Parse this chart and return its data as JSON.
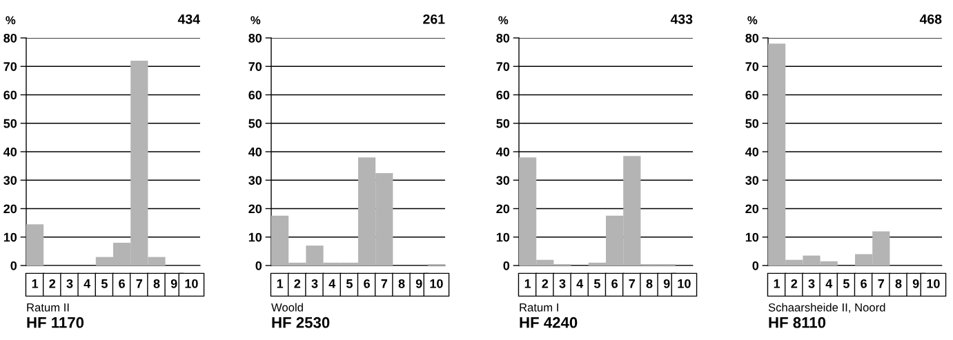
{
  "chart_data": [
    {
      "type": "bar",
      "title": "HF 1170",
      "subtitle": "Ratum II",
      "ylabel": "%",
      "annotations": [
        "434"
      ],
      "categories": [
        "1",
        "2",
        "3",
        "4",
        "5",
        "6",
        "7",
        "8",
        "9",
        "10"
      ],
      "values": [
        14.5,
        0,
        0,
        0,
        3,
        8,
        72,
        3,
        0,
        0
      ],
      "color": "#b4b4b4",
      "ylim": [
        0,
        80
      ],
      "yticks": [
        0,
        10,
        20,
        30,
        40,
        50,
        60,
        70,
        80
      ],
      "grid": "y"
    },
    {
      "type": "bar",
      "title": "HF 2530",
      "subtitle": "Woold",
      "ylabel": "%",
      "annotations": [
        "261"
      ],
      "categories": [
        "1",
        "2",
        "3",
        "4",
        "5",
        "6",
        "7",
        "8",
        "9",
        "10"
      ],
      "values": [
        17.5,
        1,
        7,
        1,
        1,
        38,
        32.5,
        0,
        0,
        0.5
      ],
      "color": "#b4b4b4",
      "ylim": [
        0,
        80
      ],
      "yticks": [
        0,
        10,
        20,
        30,
        40,
        50,
        60,
        70,
        80
      ],
      "grid": "y"
    },
    {
      "type": "bar",
      "title": "HF 4240",
      "subtitle": "Ratum I",
      "ylabel": "%",
      "annotations": [
        "433"
      ],
      "categories": [
        "1",
        "2",
        "3",
        "4",
        "5",
        "6",
        "7",
        "8",
        "9",
        "10"
      ],
      "values": [
        38,
        2,
        0.5,
        0,
        1,
        17.5,
        38.5,
        0.5,
        0.5,
        0
      ],
      "color": "#b4b4b4",
      "ylim": [
        0,
        80
      ],
      "yticks": [
        0,
        10,
        20,
        30,
        40,
        50,
        60,
        70,
        80
      ],
      "grid": "y"
    },
    {
      "type": "bar",
      "title": "HF 8110",
      "subtitle": "Schaarsheide II, Noord",
      "ylabel": "%",
      "annotations": [
        "468"
      ],
      "categories": [
        "1",
        "2",
        "3",
        "4",
        "5",
        "6",
        "7",
        "8",
        "9",
        "10"
      ],
      "values": [
        78,
        2,
        3.5,
        1.5,
        0,
        4,
        12,
        0,
        0,
        0
      ],
      "color": "#b4b4b4",
      "ylim": [
        0,
        80
      ],
      "yticks": [
        0,
        10,
        20,
        30,
        40,
        50,
        60,
        70,
        80
      ],
      "grid": "y"
    }
  ]
}
